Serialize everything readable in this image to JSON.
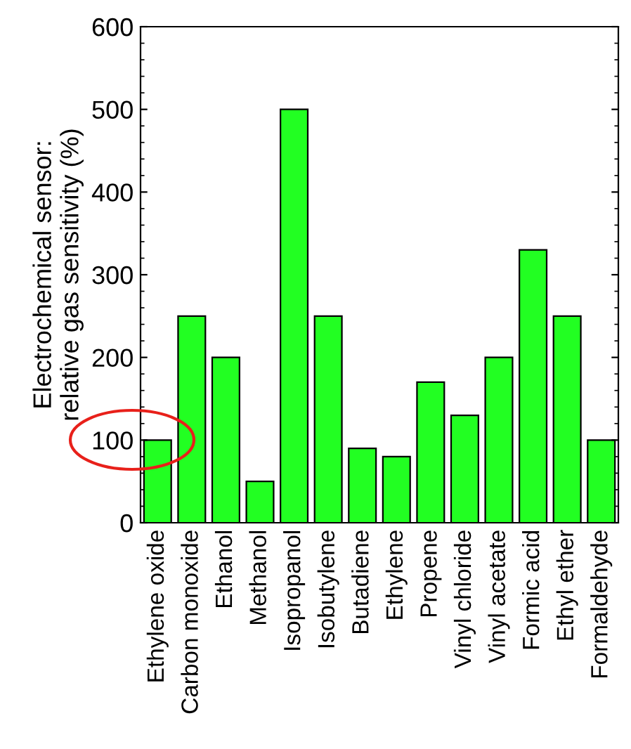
{
  "chart_data": {
    "type": "bar",
    "ylabel": "Electrochemical sensor:\nrelative gas sensitivity (%)",
    "categories": [
      "Ethylene oxide",
      "Carbon monoxide",
      "Ethanol",
      "Methanol",
      "Isopropanol",
      "Isobutylene",
      "Butadiene",
      "Ethylene",
      "Propene",
      "Vinyl chloride",
      "Vinyl acetate",
      "Formic acid",
      "Ethyl ether",
      "Formaldehyde"
    ],
    "values": [
      100,
      250,
      200,
      50,
      500,
      250,
      90,
      80,
      170,
      130,
      200,
      330,
      250,
      100
    ],
    "color": "#22ff22",
    "ylim": [
      0,
      600
    ],
    "yticks": [
      0,
      100,
      200,
      300,
      400,
      500,
      600
    ],
    "grid": false
  }
}
